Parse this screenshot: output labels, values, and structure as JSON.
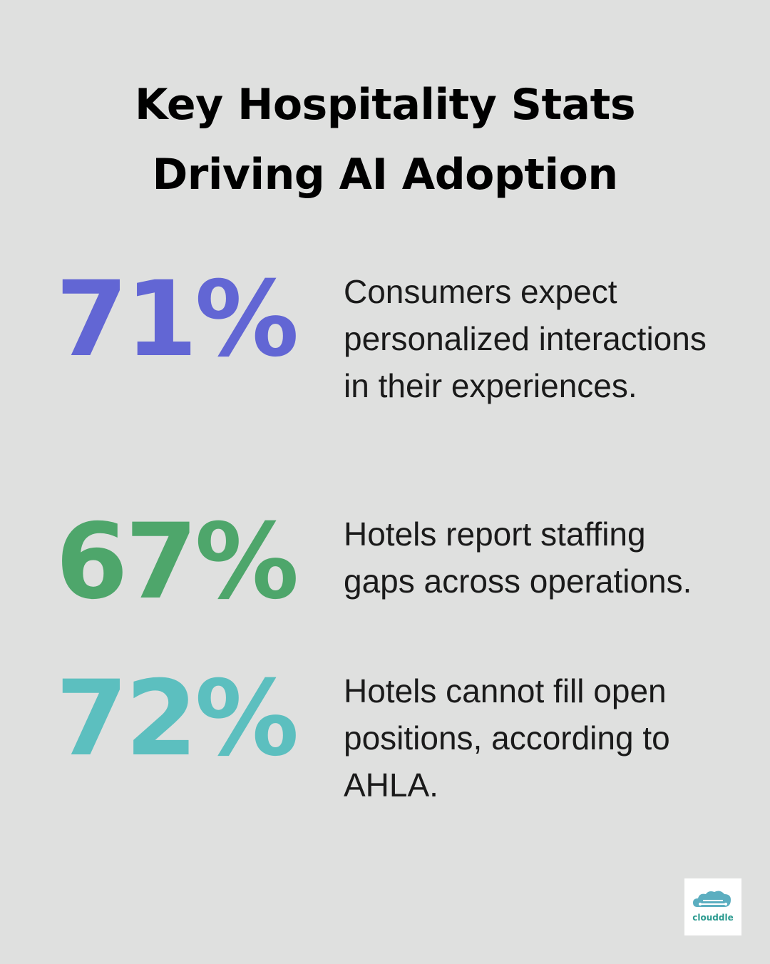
{
  "header": {
    "title": "Key Hospitality Stats Driving AI Adoption"
  },
  "stats": [
    {
      "value": "71%",
      "color": "#6266d4",
      "description": "Consumers expect personalized interactions in their experiences."
    },
    {
      "value": "67%",
      "color": "#4ea66b",
      "description": "Hotels report staffing gaps across operations."
    },
    {
      "value": "72%",
      "color": "#5cbfbf",
      "description": "Hotels cannot fill open positions, according to AHLA."
    }
  ],
  "logo": {
    "text": "clouddle"
  }
}
